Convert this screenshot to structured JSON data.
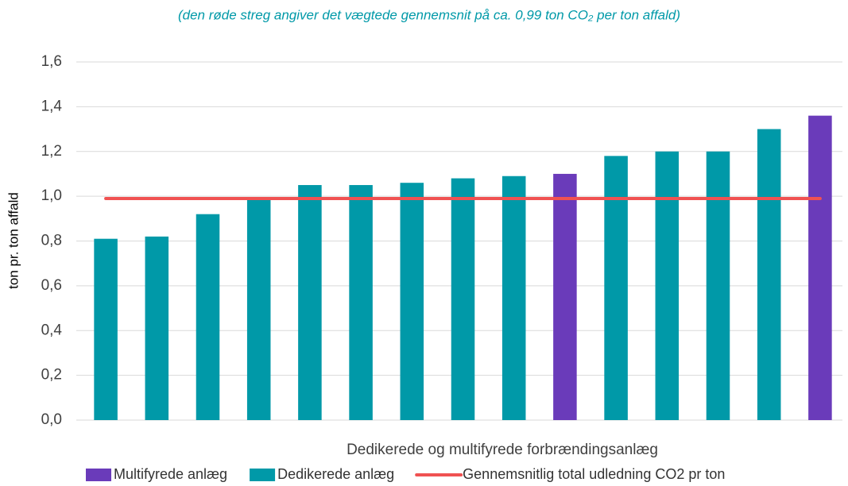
{
  "chart_data": {
    "type": "bar",
    "subtitle": "(den røde streg angiver det vægtede gennemsnit på ca. 0,99 ton CO₂ per ton affald)",
    "x_label": "Dedikerede og multifyrede forbrændingsanlæg",
    "y_label": "ton pr. ton affald",
    "categories": [
      null,
      null,
      null,
      null,
      null,
      null,
      null,
      null,
      null,
      null,
      null,
      null,
      null,
      null,
      null
    ],
    "series": [
      {
        "name": "Multifyrede anlæg",
        "color": "#6a3bba",
        "values": [
          null,
          null,
          null,
          null,
          null,
          null,
          null,
          null,
          null,
          1.1,
          null,
          null,
          null,
          null,
          1.36
        ]
      },
      {
        "name": "Dedikerede anlæg",
        "color": "#0099a8",
        "values": [
          0.81,
          0.82,
          0.92,
          0.99,
          1.05,
          1.05,
          1.06,
          1.08,
          1.09,
          null,
          1.18,
          1.2,
          1.2,
          1.3,
          null
        ]
      },
      {
        "name": "Gennemsnitlig total udledning CO2 pr ton",
        "color": "#f05252",
        "type": "line",
        "values": [
          0.99,
          0.99,
          0.99,
          0.99,
          0.99,
          0.99,
          0.99,
          0.99,
          0.99,
          0.99,
          0.99,
          0.99,
          0.99,
          0.99,
          0.99
        ]
      }
    ],
    "ylim": [
      0,
      1.6
    ],
    "yticks": [
      {
        "value": 0,
        "label": "0,0"
      },
      {
        "value": 0.2,
        "label": "0,2"
      },
      {
        "value": 0.4,
        "label": "0,4"
      },
      {
        "value": 0.6,
        "label": "0,6"
      },
      {
        "value": 0.8,
        "label": "0,8"
      },
      {
        "value": 1.0,
        "label": "1,0"
      },
      {
        "value": 1.2,
        "label": "1,2"
      },
      {
        "value": 1.4,
        "label": "1,4"
      },
      {
        "value": 1.6,
        "label": "1,6"
      }
    ],
    "grid": true,
    "legend": "bottom"
  }
}
